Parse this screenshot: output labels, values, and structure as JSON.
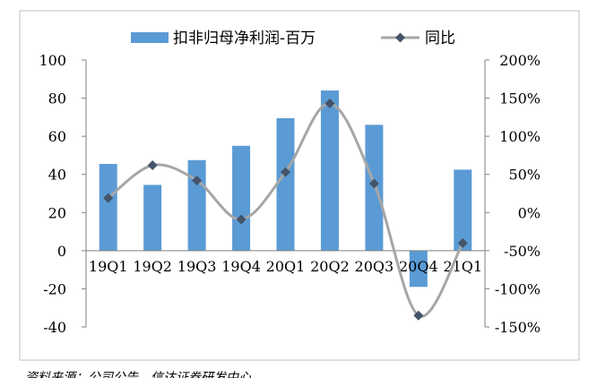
{
  "chart_data": {
    "type": "bar",
    "categories": [
      "19Q1",
      "19Q2",
      "19Q3",
      "19Q4",
      "20Q1",
      "20Q2",
      "20Q3",
      "20Q4",
      "21Q1"
    ],
    "series": [
      {
        "name": "扣非归母净利润-百万",
        "kind": "bar",
        "axis": "left",
        "color": "#5b9bd5",
        "values": [
          45.5,
          34.5,
          47.5,
          55,
          69.5,
          84,
          66,
          -19,
          42.5
        ]
      },
      {
        "name": "同比",
        "kind": "line",
        "axis": "right",
        "color": "#a6a6a6",
        "marker_color": "#44546a",
        "values": [
          19,
          62,
          42,
          -9,
          53,
          143,
          38,
          -135,
          -40
        ]
      }
    ],
    "y_left": {
      "ylim": [
        -40,
        100
      ],
      "ticks": [
        "100",
        "80",
        "60",
        "40",
        "20",
        "0",
        "-20",
        "-40"
      ]
    },
    "y_right": {
      "ylim": [
        -150,
        200
      ],
      "ticks": [
        "200%",
        "150%",
        "100%",
        "50%",
        "0%",
        "-50%",
        "-100%",
        "-150%"
      ]
    },
    "legend": {
      "placement": "top-center"
    },
    "grid": false,
    "source_text": "资料来源：公司公告，信达证券研发中心"
  }
}
